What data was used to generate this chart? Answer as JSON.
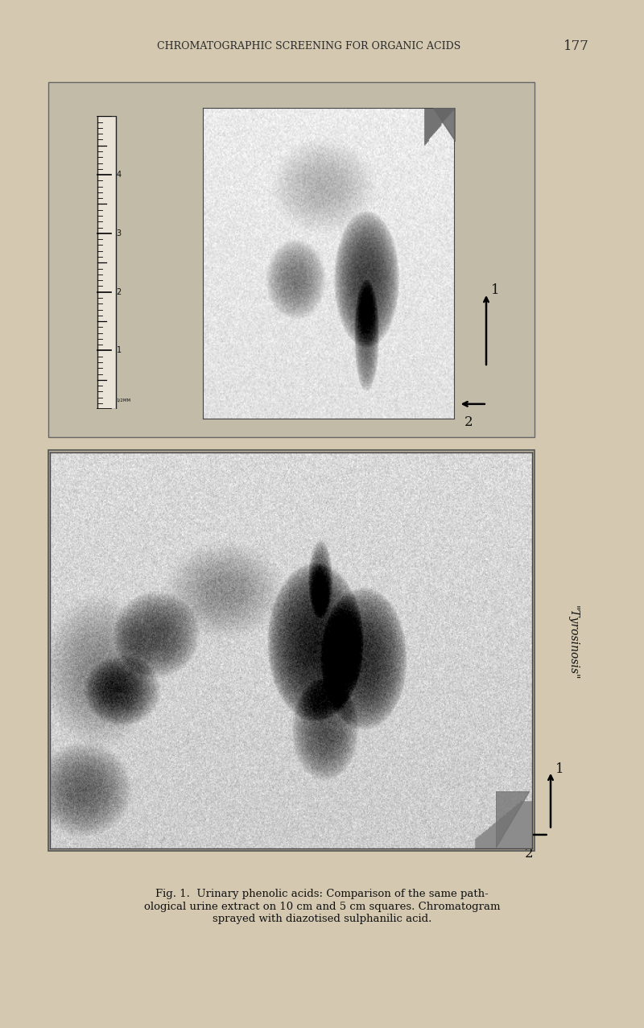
{
  "page_bg_color": "#d4c9b0",
  "header_text": "CHROMATOGRAPHIC SCREENING FOR ORGANIC ACIDS",
  "header_number": "177",
  "header_fontsize": 9,
  "caption_line1": "Fig. 1.  Urinary phenolic acids: Comparison of the same path-",
  "caption_line2": "ological urine extract on 10 cm and 5 cm squares. Chromatogram",
  "caption_line3": "sprayed with diazotised sulphanilic acid.",
  "caption_fontsize": 9.5,
  "tyrosinosis_label": "\"Tyrosinosis\"",
  "tyrosinosis_fontsize": 10,
  "top_panel_bg": "#c2bba8",
  "bottom_panel_bg": "#b0a898",
  "chroma_bg_top": "#d8d2c5",
  "chroma_bg_bottom": "#c0b8a8"
}
